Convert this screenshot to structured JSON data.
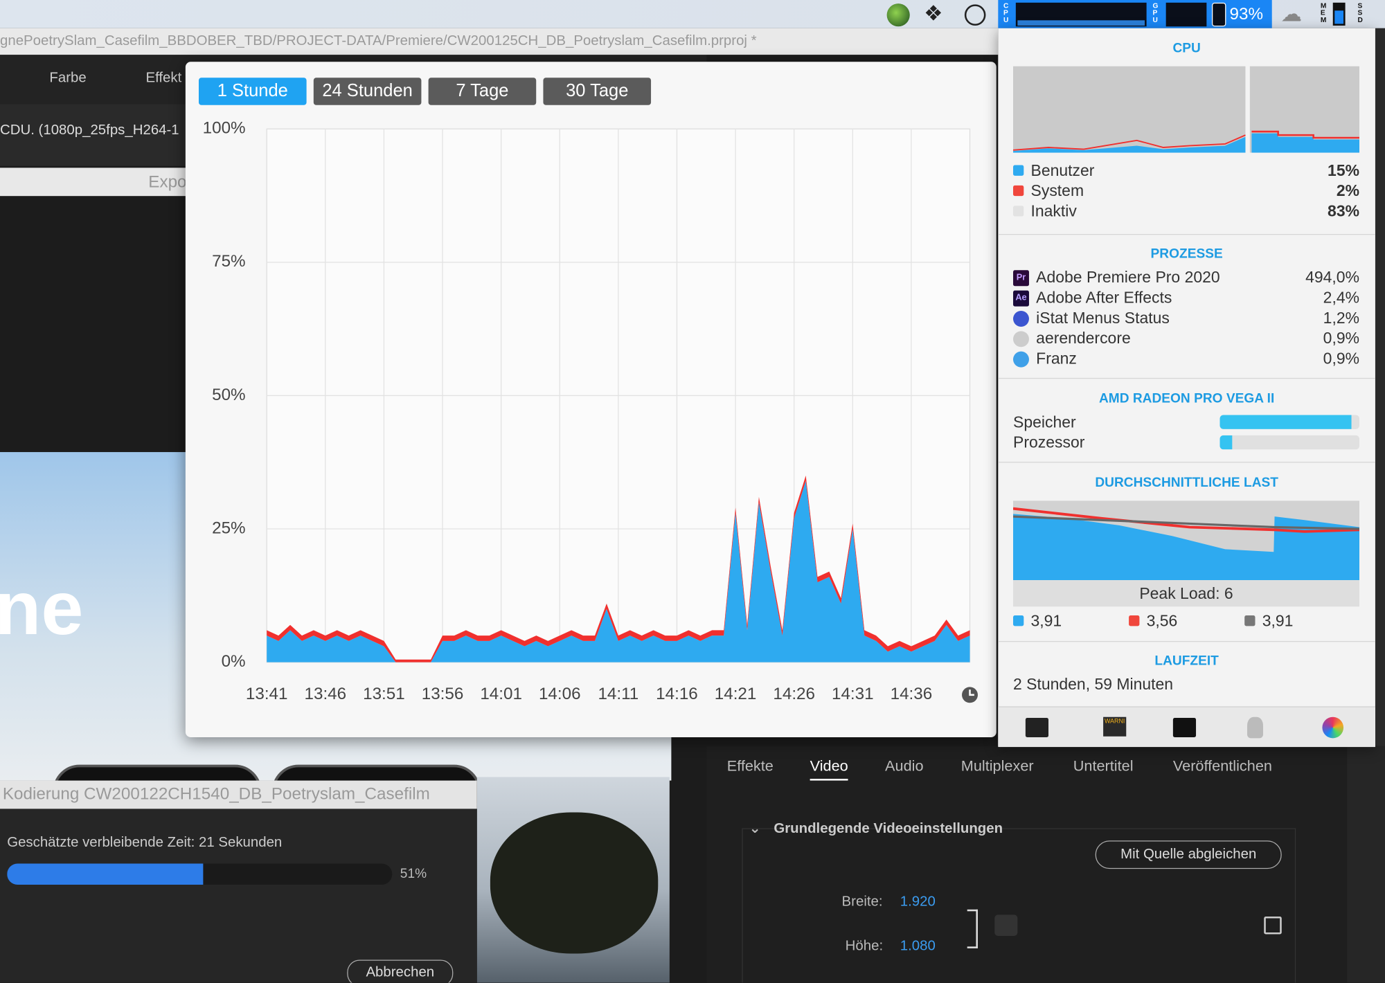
{
  "menubar": {
    "cpu_label": "CPU",
    "gpu_label": "GPU",
    "battery": "93%",
    "mem_label": "MEM",
    "ssd_label": "SSD"
  },
  "window_path": "gnePoetrySlam_Casefilm_BBDOBER_TBD/PROJECT-DATA/Premiere/CW200125CH_DB_Poetryslam_Casefilm.prproj *",
  "premiere": {
    "tabs": [
      "Farbe",
      "Effekt"
    ],
    "sequence": "CDU. (1080p_25fps_H264-1",
    "export_label": "Expo",
    "overlay_text": "ne",
    "export_tabs": [
      "Effekte",
      "Video",
      "Audio",
      "Multiplexer",
      "Untertitel",
      "Veröffentlichen"
    ],
    "section": "Grundlegende Videoeinstellungen",
    "match_button": "Mit Quelle abgleichen",
    "width_label": "Breite:",
    "width_value": "1.920",
    "height_label": "Höhe:",
    "height_value": "1.080"
  },
  "encoding_dialog": {
    "title": "Kodierung CW200122CH1540_DB_Poetryslam_Casefilm",
    "remaining": "Geschätzte verbleibende Zeit: 21 Sekunden",
    "progress": {
      "value": 51,
      "label": "51%"
    },
    "cancel": "Abbrechen"
  },
  "history_popover": {
    "ranges": [
      "1 Stunde",
      "24 Stunden",
      "7 Tage",
      "30 Tage"
    ]
  },
  "chart_data": {
    "type": "area",
    "categories": [
      "13:41",
      null,
      null,
      null,
      null,
      "13:46",
      null,
      null,
      null,
      null,
      "13:51",
      null,
      null,
      null,
      null,
      "13:56",
      null,
      null,
      null,
      null,
      "14:01",
      null,
      null,
      null,
      null,
      "14:06",
      null,
      null,
      null,
      null,
      "14:11",
      null,
      null,
      null,
      null,
      "14:16",
      null,
      null,
      null,
      null,
      "14:21",
      null,
      null,
      null,
      null,
      "14:26",
      null,
      null,
      null,
      null,
      "14:31",
      null,
      null,
      null,
      null,
      "14:36",
      null,
      null,
      null,
      null,
      null
    ],
    "series": [
      {
        "name": "Benutzer",
        "color": "#2eaaf0",
        "values": [
          5,
          4,
          6,
          4,
          5,
          4,
          5,
          4,
          5,
          4,
          3,
          0,
          0,
          0,
          0,
          4,
          4,
          5,
          4,
          4,
          5,
          4,
          3,
          4,
          3,
          4,
          5,
          4,
          4,
          10,
          4,
          5,
          4,
          5,
          4,
          4,
          5,
          4,
          5,
          5,
          28,
          6,
          30,
          17,
          5,
          27,
          34,
          15,
          16,
          11,
          25,
          5,
          4,
          2,
          3,
          2,
          3,
          4,
          7,
          4,
          5
        ]
      },
      {
        "name": "System",
        "color": "#f0302e",
        "values": [
          1,
          1,
          1,
          1,
          1,
          1,
          1,
          1,
          1,
          1,
          1,
          0.5,
          0.5,
          0.5,
          0.5,
          1,
          1,
          1,
          1,
          1,
          1,
          1,
          1,
          1,
          1,
          1,
          1,
          1,
          1,
          1,
          1,
          1,
          1,
          1,
          1,
          1,
          1,
          1,
          1,
          1,
          1,
          1,
          1,
          1,
          1,
          1,
          1,
          1,
          1,
          1,
          1,
          1,
          1,
          1,
          1,
          1,
          1,
          1,
          1,
          1,
          1
        ]
      }
    ],
    "ylim": [
      0,
      100
    ],
    "yticks": [
      {
        "value": 0,
        "label": "0%"
      },
      {
        "value": 25,
        "label": "25%"
      },
      {
        "value": 50,
        "label": "50%"
      },
      {
        "value": 75,
        "label": "75%"
      },
      {
        "value": 100,
        "label": "100%"
      }
    ],
    "grid": true,
    "stacked": true
  },
  "istat": {
    "cpu_title": "CPU",
    "cpu_rows": [
      {
        "label": "Benutzer",
        "value": "15%"
      },
      {
        "label": "System",
        "value": "2%"
      },
      {
        "label": "Inaktiv",
        "value": "83%"
      }
    ],
    "processes_title": "PROZESSE",
    "processes": [
      {
        "icon": "Pr",
        "name": "Adobe Premiere Pro 2020",
        "value": "494,0%"
      },
      {
        "icon": "Ae",
        "name": "Adobe After Effects",
        "value": "2,4%"
      },
      {
        "name": "iStat Menus Status",
        "value": "1,2%"
      },
      {
        "name": "aerendercore",
        "value": "0,9%"
      },
      {
        "name": "Franz",
        "value": "0,9%"
      }
    ],
    "gpu_title": "AMD RADEON PRO VEGA II",
    "gpu_rows": [
      {
        "label": "Speicher",
        "value": 94
      },
      {
        "label": "Prozessor",
        "value": 9
      }
    ],
    "load_title": "DURCHSCHNITTLICHE LAST",
    "peak_load": "Peak Load: 6",
    "loads": [
      "3,91",
      "3,56",
      "3,91"
    ],
    "uptime_title": "LAUFZEIT",
    "uptime": "2 Stunden, 59 Minuten",
    "warning_icon": "WARNI"
  }
}
